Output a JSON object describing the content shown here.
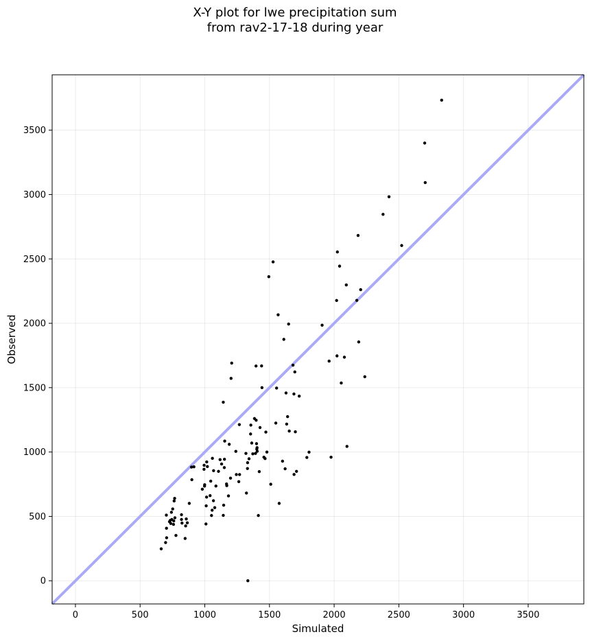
{
  "chart_data": {
    "type": "scatter",
    "title_line1": "X-Y plot for lwe precipitation sum",
    "title_line2": "from rav2-17-18 during year",
    "xlabel": "Simulated",
    "ylabel": "Observed",
    "xlim": [
      -180,
      3930
    ],
    "ylim": [
      -180,
      3930
    ],
    "xticks": [
      0,
      500,
      1000,
      1500,
      2000,
      2500,
      3000,
      3500
    ],
    "yticks": [
      0,
      500,
      1000,
      1500,
      2000,
      2500,
      3000,
      3500
    ],
    "grid": true,
    "reference_line": {
      "type": "1:1",
      "color": "#aaaaf6"
    },
    "point_color": "#000000",
    "points": [
      [
        663,
        248
      ],
      [
        697,
        297
      ],
      [
        705,
        334
      ],
      [
        704,
        408
      ],
      [
        703,
        510
      ],
      [
        727,
        459
      ],
      [
        733,
        469
      ],
      [
        737,
        445
      ],
      [
        745,
        476
      ],
      [
        742,
        532
      ],
      [
        752,
        558
      ],
      [
        763,
        620
      ],
      [
        767,
        640
      ],
      [
        769,
        489
      ],
      [
        760,
        465
      ],
      [
        758,
        438
      ],
      [
        777,
        352
      ],
      [
        820,
        513
      ],
      [
        820,
        476
      ],
      [
        824,
        448
      ],
      [
        848,
        329
      ],
      [
        852,
        426
      ],
      [
        857,
        480
      ],
      [
        865,
        450
      ],
      [
        880,
        601
      ],
      [
        897,
        883
      ],
      [
        900,
        785
      ],
      [
        916,
        885
      ],
      [
        981,
        711
      ],
      [
        994,
        866
      ],
      [
        995,
        897
      ],
      [
        998,
        735
      ],
      [
        999,
        746
      ],
      [
        1009,
        441
      ],
      [
        1011,
        582
      ],
      [
        1014,
        650
      ],
      [
        1015,
        923
      ],
      [
        1020,
        887
      ],
      [
        1041,
        661
      ],
      [
        1046,
        774
      ],
      [
        1052,
        507
      ],
      [
        1057,
        548
      ],
      [
        1059,
        951
      ],
      [
        1067,
        622
      ],
      [
        1068,
        855
      ],
      [
        1077,
        568
      ],
      [
        1086,
        736
      ],
      [
        1106,
        850
      ],
      [
        1118,
        941
      ],
      [
        1130,
        907
      ],
      [
        1143,
        508
      ],
      [
        1146,
        587
      ],
      [
        1151,
        879
      ],
      [
        1152,
        944
      ],
      [
        1143,
        1387
      ],
      [
        1154,
        1085
      ],
      [
        1168,
        752
      ],
      [
        1170,
        739
      ],
      [
        1183,
        659
      ],
      [
        1189,
        1060
      ],
      [
        1199,
        797
      ],
      [
        1203,
        1572
      ],
      [
        1208,
        1691
      ],
      [
        1240,
        1005
      ],
      [
        1244,
        825
      ],
      [
        1263,
        770
      ],
      [
        1267,
        1213
      ],
      [
        1269,
        825
      ],
      [
        1318,
        989
      ],
      [
        1322,
        681
      ],
      [
        1330,
        872
      ],
      [
        1331,
        917
      ],
      [
        1333,
        0
      ],
      [
        1342,
        948
      ],
      [
        1354,
        1140
      ],
      [
        1356,
        1209
      ],
      [
        1363,
        1070
      ],
      [
        1371,
        986
      ],
      [
        1384,
        1260
      ],
      [
        1392,
        989
      ],
      [
        1396,
        1668
      ],
      [
        1397,
        1247
      ],
      [
        1400,
        1065
      ],
      [
        1402,
        1023
      ],
      [
        1404,
        1034
      ],
      [
        1405,
        1006
      ],
      [
        1414,
        507
      ],
      [
        1421,
        848
      ],
      [
        1427,
        1190
      ],
      [
        1439,
        1669
      ],
      [
        1442,
        1500
      ],
      [
        1457,
        960
      ],
      [
        1466,
        949
      ],
      [
        1472,
        1155
      ],
      [
        1480,
        1000
      ],
      [
        1495,
        2362
      ],
      [
        1510,
        750
      ],
      [
        1528,
        2477
      ],
      [
        1549,
        1225
      ],
      [
        1555,
        1497
      ],
      [
        1567,
        2066
      ],
      [
        1575,
        601
      ],
      [
        1601,
        929
      ],
      [
        1611,
        1875
      ],
      [
        1621,
        870
      ],
      [
        1628,
        1459
      ],
      [
        1633,
        1217
      ],
      [
        1640,
        1275
      ],
      [
        1648,
        1994
      ],
      [
        1653,
        1163
      ],
      [
        1682,
        1675
      ],
      [
        1689,
        1451
      ],
      [
        1690,
        826
      ],
      [
        1696,
        1622
      ],
      [
        1700,
        1157
      ],
      [
        1709,
        850
      ],
      [
        1730,
        1434
      ],
      [
        1789,
        958
      ],
      [
        1806,
        999
      ],
      [
        1907,
        1985
      ],
      [
        1961,
        1706
      ],
      [
        1976,
        960
      ],
      [
        2019,
        2177
      ],
      [
        2022,
        1747
      ],
      [
        2025,
        2554
      ],
      [
        2042,
        2444
      ],
      [
        2055,
        1536
      ],
      [
        2079,
        1737
      ],
      [
        2094,
        2298
      ],
      [
        2099,
        1044
      ],
      [
        2175,
        2178
      ],
      [
        2185,
        2682
      ],
      [
        2190,
        1855
      ],
      [
        2205,
        2261
      ],
      [
        2237,
        1585
      ],
      [
        2378,
        2846
      ],
      [
        2424,
        2983
      ],
      [
        2522,
        2604
      ],
      [
        2700,
        3400
      ],
      [
        2704,
        3093
      ],
      [
        2831,
        3733
      ]
    ]
  }
}
